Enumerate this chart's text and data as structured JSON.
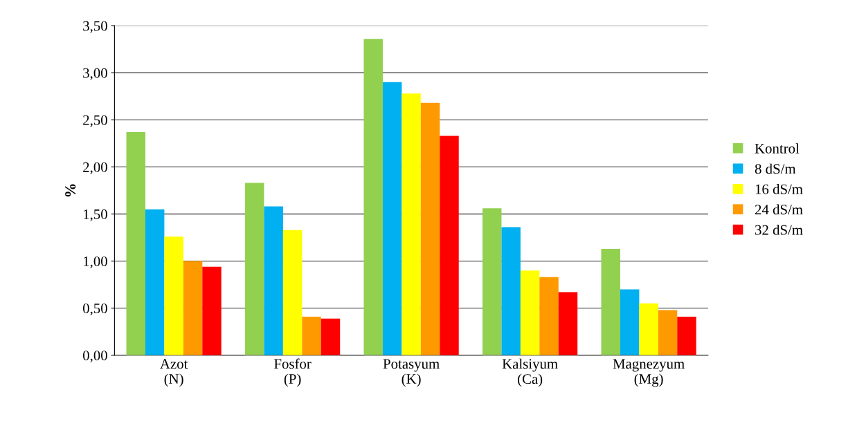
{
  "chart_data": {
    "type": "bar",
    "ylabel": "%",
    "categories": [
      "Azot\n(N)",
      "Fosfor\n(P)",
      "Potasyum\n(K)",
      "Kalsiyum\n(Ca)",
      "Magnezyum\n(Mg)"
    ],
    "series": [
      {
        "name": "Kontrol",
        "color": "#92d050",
        "values": [
          2.37,
          1.83,
          3.36,
          1.56,
          1.13
        ]
      },
      {
        "name": "8 dS/m",
        "color": "#00b0f0",
        "values": [
          1.55,
          1.58,
          2.9,
          1.36,
          0.7
        ]
      },
      {
        "name": "16 dS/m",
        "color": "#ffff00",
        "values": [
          1.26,
          1.33,
          2.78,
          0.9,
          0.55
        ]
      },
      {
        "name": "24 dS/m",
        "color": "#ff9900",
        "values": [
          1.0,
          0.41,
          2.68,
          0.83,
          0.48
        ]
      },
      {
        "name": "32 dS/m",
        "color": "#ff0000",
        "values": [
          0.94,
          0.39,
          2.33,
          0.67,
          0.41
        ]
      }
    ],
    "ylim": [
      0,
      3.5
    ],
    "yticks": [
      {
        "value": 0,
        "label": "0,00"
      },
      {
        "value": 0.5,
        "label": "0,50"
      },
      {
        "value": 1,
        "label": "1,00"
      },
      {
        "value": 1.5,
        "label": "1,50"
      },
      {
        "value": 2,
        "label": "2,00"
      },
      {
        "value": 2.5,
        "label": "2,50"
      },
      {
        "value": 3,
        "label": "3,00"
      },
      {
        "value": 3.5,
        "label": "3,50"
      }
    ],
    "grid": "y",
    "legend": "right"
  }
}
